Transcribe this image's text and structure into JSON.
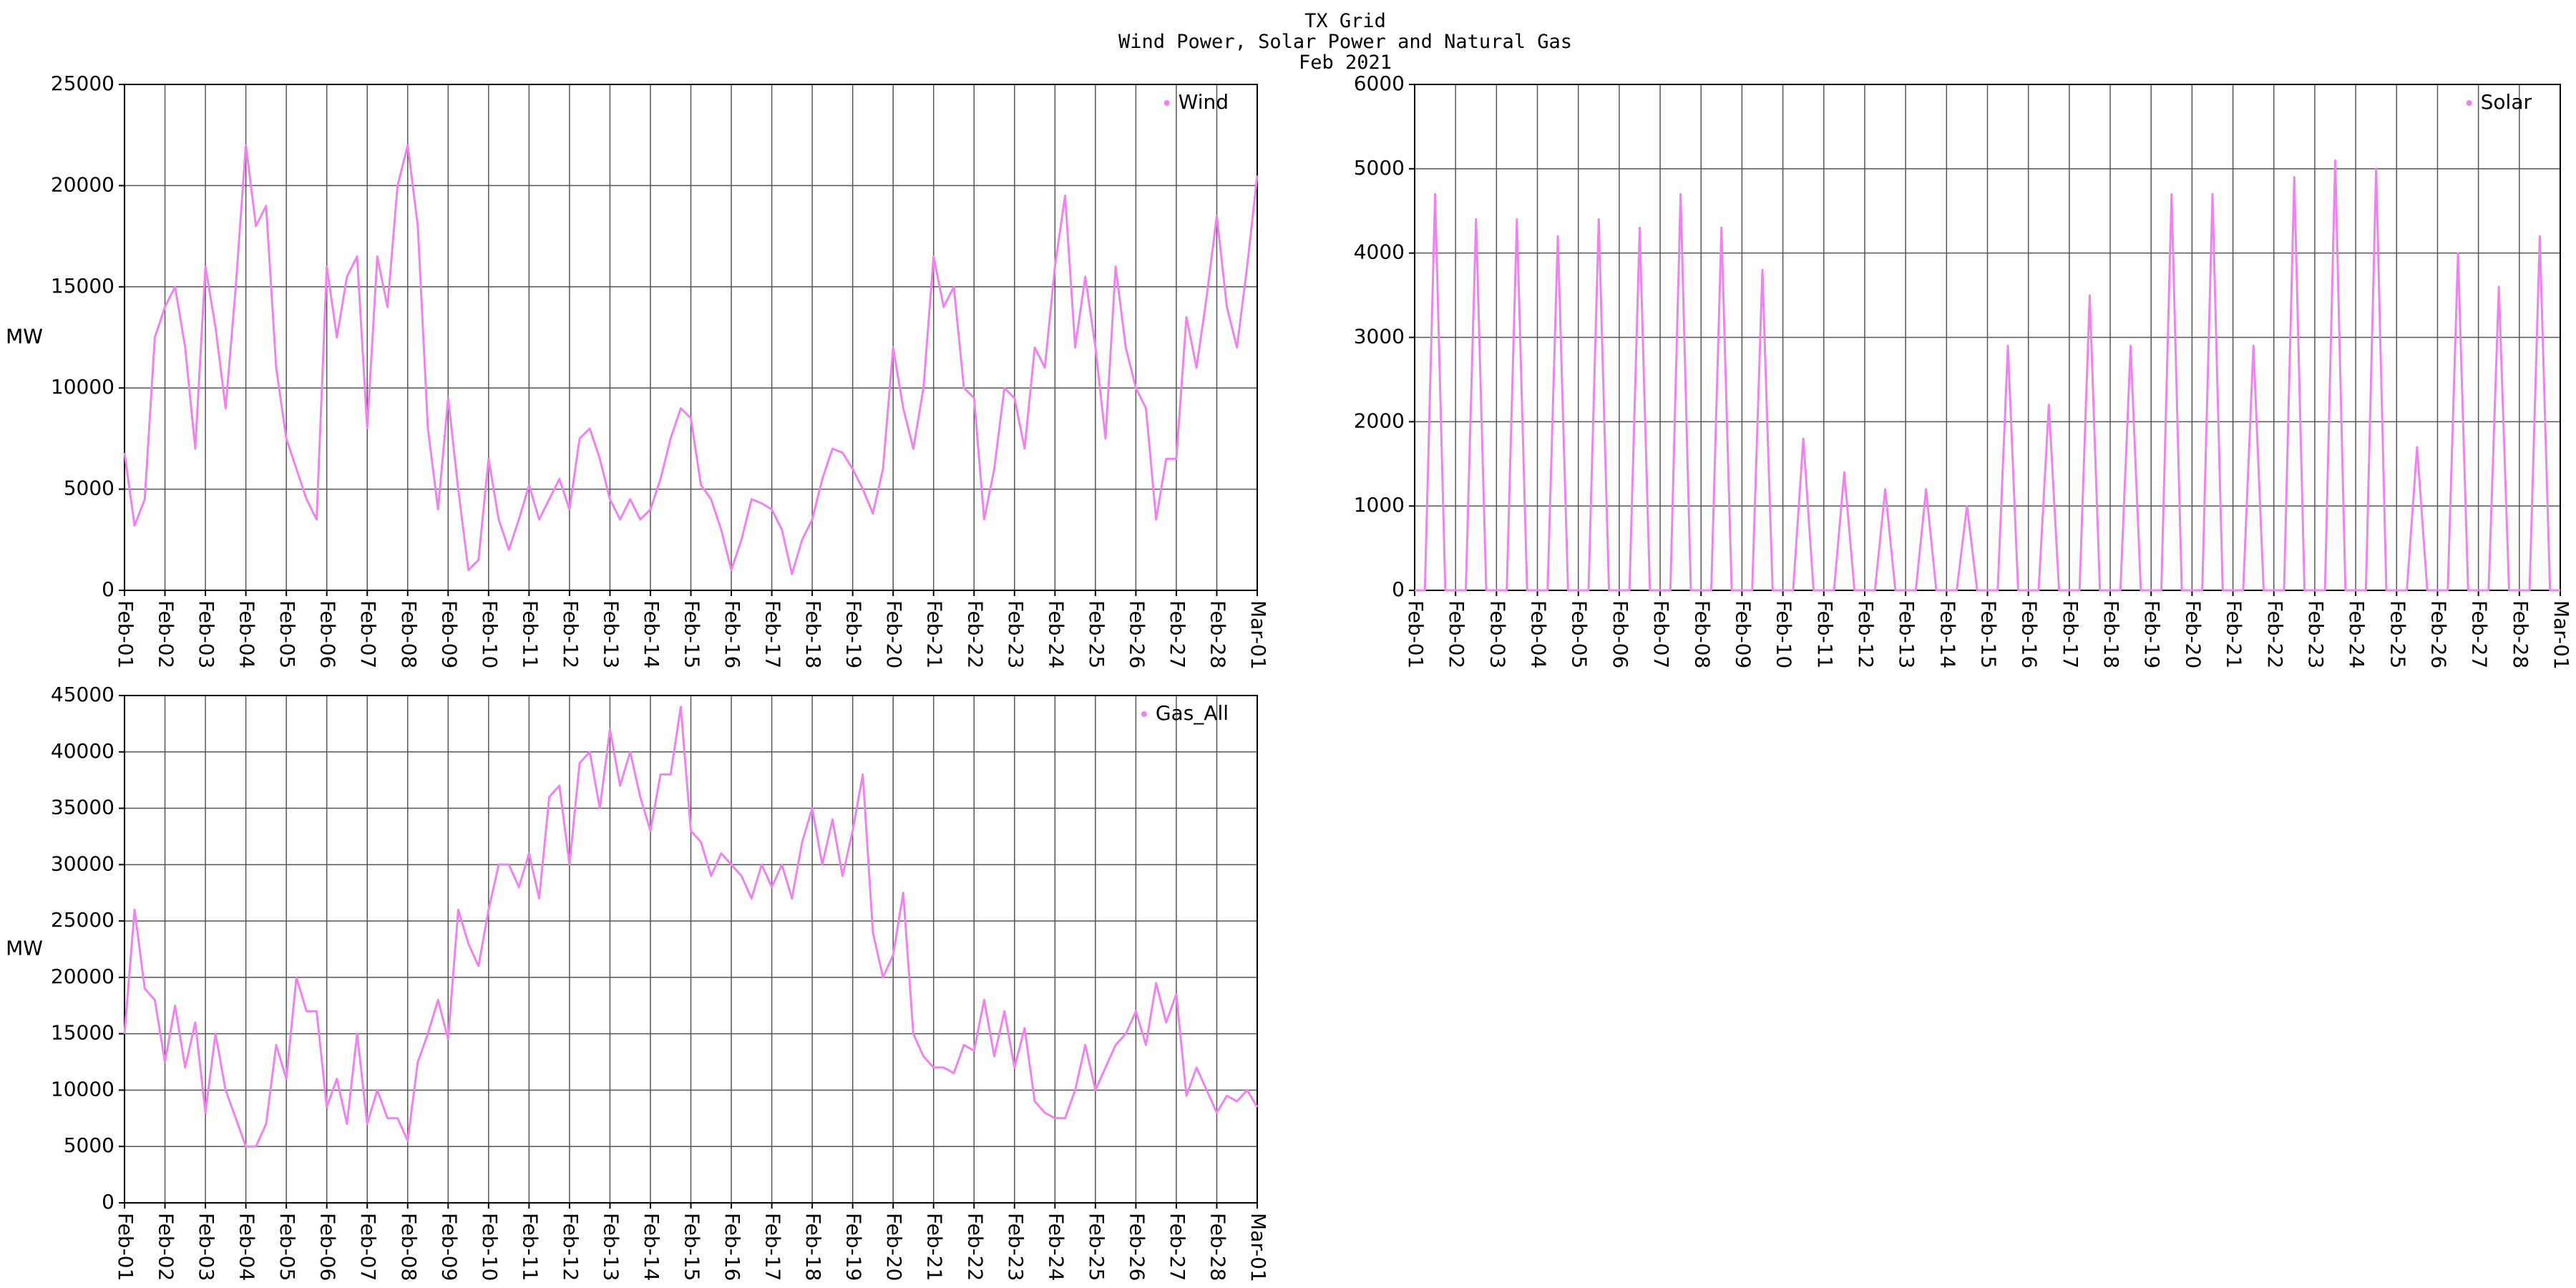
{
  "title": [
    "TX Grid",
    "Wind Power, Solar Power and Natural Gas",
    "Feb 2021"
  ],
  "chart_data": [
    {
      "type": "line",
      "ylabel": "MW",
      "grid": true,
      "legend": "upper right",
      "xlim": [
        1,
        29
      ],
      "ylim": [
        0,
        25000
      ],
      "yticks": [
        0,
        5000,
        10000,
        15000,
        20000,
        25000
      ],
      "xticks": [
        {
          "value": 1,
          "label": "Feb-01"
        },
        {
          "value": 2,
          "label": "Feb-02"
        },
        {
          "value": 3,
          "label": "Feb-03"
        },
        {
          "value": 4,
          "label": "Feb-04"
        },
        {
          "value": 5,
          "label": "Feb-05"
        },
        {
          "value": 6,
          "label": "Feb-06"
        },
        {
          "value": 7,
          "label": "Feb-07"
        },
        {
          "value": 8,
          "label": "Feb-08"
        },
        {
          "value": 9,
          "label": "Feb-09"
        },
        {
          "value": 10,
          "label": "Feb-10"
        },
        {
          "value": 11,
          "label": "Feb-11"
        },
        {
          "value": 12,
          "label": "Feb-12"
        },
        {
          "value": 13,
          "label": "Feb-13"
        },
        {
          "value": 14,
          "label": "Feb-14"
        },
        {
          "value": 15,
          "label": "Feb-15"
        },
        {
          "value": 16,
          "label": "Feb-16"
        },
        {
          "value": 17,
          "label": "Feb-17"
        },
        {
          "value": 18,
          "label": "Feb-18"
        },
        {
          "value": 19,
          "label": "Feb-19"
        },
        {
          "value": 20,
          "label": "Feb-20"
        },
        {
          "value": 21,
          "label": "Feb-21"
        },
        {
          "value": 22,
          "label": "Feb-22"
        },
        {
          "value": 23,
          "label": "Feb-23"
        },
        {
          "value": 24,
          "label": "Feb-24"
        },
        {
          "value": 25,
          "label": "Feb-25"
        },
        {
          "value": 26,
          "label": "Feb-26"
        },
        {
          "value": 27,
          "label": "Feb-27"
        },
        {
          "value": 28,
          "label": "Feb-28"
        },
        {
          "value": 29,
          "label": "Mar-01"
        }
      ],
      "x": [
        1,
        1.25,
        1.5,
        1.75,
        2,
        2.25,
        2.5,
        2.75,
        3,
        3.25,
        3.5,
        3.75,
        4,
        4.25,
        4.5,
        4.75,
        5,
        5.25,
        5.5,
        5.75,
        6,
        6.25,
        6.5,
        6.75,
        7,
        7.25,
        7.5,
        7.75,
        8,
        8.25,
        8.5,
        8.75,
        9,
        9.25,
        9.5,
        9.75,
        10,
        10.25,
        10.5,
        10.75,
        11,
        11.25,
        11.5,
        11.75,
        12,
        12.25,
        12.5,
        12.75,
        13,
        13.25,
        13.5,
        13.75,
        14,
        14.25,
        14.5,
        14.75,
        15,
        15.25,
        15.5,
        15.75,
        16,
        16.25,
        16.5,
        16.75,
        17,
        17.25,
        17.5,
        17.75,
        18,
        18.25,
        18.5,
        18.75,
        19,
        19.25,
        19.5,
        19.75,
        20,
        20.25,
        20.5,
        20.75,
        21,
        21.25,
        21.5,
        21.75,
        22,
        22.25,
        22.5,
        22.75,
        23,
        23.25,
        23.5,
        23.75,
        24,
        24.25,
        24.5,
        24.75,
        25,
        25.25,
        25.5,
        25.75,
        26,
        26.25,
        26.5,
        26.75,
        27,
        27.25,
        27.5,
        27.75,
        28,
        28.25,
        28.5,
        28.75,
        29
      ],
      "series": [
        {
          "name": "Wind",
          "color": "#ee82ee",
          "values": [
            6800,
            3200,
            4500,
            12500,
            14000,
            15000,
            12000,
            7000,
            16000,
            13000,
            9000,
            15000,
            22000,
            18000,
            19000,
            11000,
            7500,
            6000,
            4500,
            3500,
            16000,
            12500,
            15500,
            16500,
            8000,
            16500,
            14000,
            20000,
            22000,
            18000,
            8000,
            4000,
            9500,
            5000,
            1000,
            1500,
            6500,
            3500,
            2000,
            3500,
            5200,
            3500,
            4500,
            5500,
            4000,
            7500,
            8000,
            6500,
            4500,
            3500,
            4500,
            3500,
            4000,
            5500,
            7500,
            9000,
            8500,
            5200,
            4500,
            3000,
            1000,
            2500,
            4500,
            4300,
            4000,
            3000,
            800,
            2500,
            3500,
            5500,
            7000,
            6800,
            6000,
            5000,
            3800,
            6000,
            12000,
            9000,
            7000,
            10000,
            16500,
            14000,
            15000,
            10000,
            9500,
            3500,
            6000,
            10000,
            9500,
            7000,
            12000,
            11000,
            16000,
            19500,
            12000,
            15500,
            12000,
            7500,
            16000,
            12000,
            10000,
            9000,
            3500,
            6500,
            6500,
            13500,
            11000,
            14500,
            18500,
            14000,
            12000,
            16000,
            20500
          ]
        }
      ]
    },
    {
      "type": "line",
      "ylabel": "MW",
      "grid": true,
      "legend": "upper right",
      "xlim": [
        1,
        29
      ],
      "ylim": [
        0,
        6000
      ],
      "yticks": [
        0,
        1000,
        2000,
        3000,
        4000,
        5000,
        6000
      ],
      "xticks": [
        {
          "value": 1,
          "label": "Feb-01"
        },
        {
          "value": 2,
          "label": "Feb-02"
        },
        {
          "value": 3,
          "label": "Feb-03"
        },
        {
          "value": 4,
          "label": "Feb-04"
        },
        {
          "value": 5,
          "label": "Feb-05"
        },
        {
          "value": 6,
          "label": "Feb-06"
        },
        {
          "value": 7,
          "label": "Feb-07"
        },
        {
          "value": 8,
          "label": "Feb-08"
        },
        {
          "value": 9,
          "label": "Feb-09"
        },
        {
          "value": 10,
          "label": "Feb-10"
        },
        {
          "value": 11,
          "label": "Feb-11"
        },
        {
          "value": 12,
          "label": "Feb-12"
        },
        {
          "value": 13,
          "label": "Feb-13"
        },
        {
          "value": 14,
          "label": "Feb-14"
        },
        {
          "value": 15,
          "label": "Feb-15"
        },
        {
          "value": 16,
          "label": "Feb-16"
        },
        {
          "value": 17,
          "label": "Feb-17"
        },
        {
          "value": 18,
          "label": "Feb-18"
        },
        {
          "value": 19,
          "label": "Feb-19"
        },
        {
          "value": 20,
          "label": "Feb-20"
        },
        {
          "value": 21,
          "label": "Feb-21"
        },
        {
          "value": 22,
          "label": "Feb-22"
        },
        {
          "value": 23,
          "label": "Feb-23"
        },
        {
          "value": 24,
          "label": "Feb-24"
        },
        {
          "value": 25,
          "label": "Feb-25"
        },
        {
          "value": 26,
          "label": "Feb-26"
        },
        {
          "value": 27,
          "label": "Feb-27"
        },
        {
          "value": 28,
          "label": "Feb-28"
        },
        {
          "value": 29,
          "label": "Mar-01"
        }
      ],
      "x": [
        1,
        1.25,
        1.5,
        1.75,
        2,
        2.25,
        2.5,
        2.75,
        3,
        3.25,
        3.5,
        3.75,
        4,
        4.25,
        4.5,
        4.75,
        5,
        5.25,
        5.5,
        5.75,
        6,
        6.25,
        6.5,
        6.75,
        7,
        7.25,
        7.5,
        7.75,
        8,
        8.25,
        8.5,
        8.75,
        9,
        9.25,
        9.5,
        9.75,
        10,
        10.25,
        10.5,
        10.75,
        11,
        11.25,
        11.5,
        11.75,
        12,
        12.25,
        12.5,
        12.75,
        13,
        13.25,
        13.5,
        13.75,
        14,
        14.25,
        14.5,
        14.75,
        15,
        15.25,
        15.5,
        15.75,
        16,
        16.25,
        16.5,
        16.75,
        17,
        17.25,
        17.5,
        17.75,
        18,
        18.25,
        18.5,
        18.75,
        19,
        19.25,
        19.5,
        19.75,
        20,
        20.25,
        20.5,
        20.75,
        21,
        21.25,
        21.5,
        21.75,
        22,
        22.25,
        22.5,
        22.75,
        23,
        23.25,
        23.5,
        23.75,
        24,
        24.25,
        24.5,
        24.75,
        25,
        25.25,
        25.5,
        25.75,
        26,
        26.25,
        26.5,
        26.75,
        27,
        27.25,
        27.5,
        27.75,
        28,
        28.25,
        28.5,
        28.75,
        29
      ],
      "series": [
        {
          "name": "Solar",
          "color": "#ee82ee",
          "values": [
            0,
            0,
            4700,
            0,
            0,
            0,
            4400,
            0,
            0,
            0,
            4400,
            0,
            0,
            0,
            4200,
            0,
            0,
            0,
            4400,
            0,
            0,
            0,
            4300,
            0,
            0,
            0,
            4700,
            0,
            0,
            0,
            4300,
            0,
            0,
            0,
            3800,
            0,
            0,
            0,
            1800,
            0,
            0,
            0,
            1400,
            0,
            0,
            0,
            1200,
            0,
            0,
            0,
            1200,
            0,
            0,
            0,
            1000,
            0,
            0,
            0,
            2900,
            0,
            0,
            0,
            2200,
            0,
            0,
            0,
            3500,
            0,
            0,
            0,
            2900,
            0,
            0,
            0,
            4700,
            0,
            0,
            0,
            4700,
            0,
            0,
            0,
            2900,
            0,
            0,
            0,
            4900,
            0,
            0,
            0,
            5100,
            0,
            0,
            0,
            5000,
            0,
            0,
            0,
            1700,
            0,
            0,
            0,
            4000,
            0,
            0,
            0,
            3600,
            0,
            0,
            0,
            4200,
            0,
            0
          ]
        }
      ]
    },
    {
      "type": "line",
      "ylabel": "MW",
      "grid": true,
      "legend": "upper right",
      "xlim": [
        1,
        29
      ],
      "ylim": [
        0,
        45000
      ],
      "yticks": [
        0,
        5000,
        10000,
        15000,
        20000,
        25000,
        30000,
        35000,
        40000,
        45000
      ],
      "xticks": [
        {
          "value": 1,
          "label": "Feb-01"
        },
        {
          "value": 2,
          "label": "Feb-02"
        },
        {
          "value": 3,
          "label": "Feb-03"
        },
        {
          "value": 4,
          "label": "Feb-04"
        },
        {
          "value": 5,
          "label": "Feb-05"
        },
        {
          "value": 6,
          "label": "Feb-06"
        },
        {
          "value": 7,
          "label": "Feb-07"
        },
        {
          "value": 8,
          "label": "Feb-08"
        },
        {
          "value": 9,
          "label": "Feb-09"
        },
        {
          "value": 10,
          "label": "Feb-10"
        },
        {
          "value": 11,
          "label": "Feb-11"
        },
        {
          "value": 12,
          "label": "Feb-12"
        },
        {
          "value": 13,
          "label": "Feb-13"
        },
        {
          "value": 14,
          "label": "Feb-14"
        },
        {
          "value": 15,
          "label": "Feb-15"
        },
        {
          "value": 16,
          "label": "Feb-16"
        },
        {
          "value": 17,
          "label": "Feb-17"
        },
        {
          "value": 18,
          "label": "Feb-18"
        },
        {
          "value": 19,
          "label": "Feb-19"
        },
        {
          "value": 20,
          "label": "Feb-20"
        },
        {
          "value": 21,
          "label": "Feb-21"
        },
        {
          "value": 22,
          "label": "Feb-22"
        },
        {
          "value": 23,
          "label": "Feb-23"
        },
        {
          "value": 24,
          "label": "Feb-24"
        },
        {
          "value": 25,
          "label": "Feb-25"
        },
        {
          "value": 26,
          "label": "Feb-26"
        },
        {
          "value": 27,
          "label": "Feb-27"
        },
        {
          "value": 28,
          "label": "Feb-28"
        },
        {
          "value": 29,
          "label": "Mar-01"
        }
      ],
      "x": [
        1,
        1.25,
        1.5,
        1.75,
        2,
        2.25,
        2.5,
        2.75,
        3,
        3.25,
        3.5,
        3.75,
        4,
        4.25,
        4.5,
        4.75,
        5,
        5.25,
        5.5,
        5.75,
        6,
        6.25,
        6.5,
        6.75,
        7,
        7.25,
        7.5,
        7.75,
        8,
        8.25,
        8.5,
        8.75,
        9,
        9.25,
        9.5,
        9.75,
        10,
        10.25,
        10.5,
        10.75,
        11,
        11.25,
        11.5,
        11.75,
        12,
        12.25,
        12.5,
        12.75,
        13,
        13.25,
        13.5,
        13.75,
        14,
        14.25,
        14.5,
        14.75,
        15,
        15.25,
        15.5,
        15.75,
        16,
        16.25,
        16.5,
        16.75,
        17,
        17.25,
        17.5,
        17.75,
        18,
        18.25,
        18.5,
        18.75,
        19,
        19.25,
        19.5,
        19.75,
        20,
        20.25,
        20.5,
        20.75,
        21,
        21.25,
        21.5,
        21.75,
        22,
        22.25,
        22.5,
        22.75,
        23,
        23.25,
        23.5,
        23.75,
        24,
        24.25,
        24.5,
        24.75,
        25,
        25.25,
        25.5,
        25.75,
        26,
        26.25,
        26.5,
        26.75,
        27,
        27.25,
        27.5,
        27.75,
        28,
        28.25,
        28.5,
        28.75,
        29
      ],
      "series": [
        {
          "name": "Gas_All",
          "color": "#ee82ee",
          "values": [
            15000,
            26000,
            19000,
            18000,
            12500,
            17500,
            12000,
            16000,
            8000,
            15000,
            10000,
            7500,
            5000,
            5000,
            7000,
            14000,
            11000,
            20000,
            17000,
            17000,
            8500,
            11000,
            7000,
            15000,
            7000,
            10000,
            7500,
            7500,
            5500,
            12500,
            15000,
            18000,
            14500,
            26000,
            23000,
            21000,
            26000,
            30000,
            30000,
            28000,
            31000,
            27000,
            36000,
            37000,
            30000,
            39000,
            40000,
            35000,
            42000,
            37000,
            40000,
            36000,
            33000,
            38000,
            38000,
            44000,
            33000,
            32000,
            29000,
            31000,
            30000,
            29000,
            27000,
            30000,
            28000,
            30000,
            27000,
            32000,
            35000,
            30000,
            34000,
            29000,
            33000,
            38000,
            24000,
            20000,
            22000,
            27500,
            15000,
            13000,
            12000,
            12000,
            11500,
            14000,
            13500,
            18000,
            13000,
            17000,
            12000,
            15500,
            9000,
            8000,
            7500,
            7500,
            10000,
            14000,
            10000,
            12000,
            14000,
            15000,
            17000,
            14000,
            19500,
            16000,
            18500,
            9500,
            12000,
            10000,
            8000,
            9500,
            9000,
            10000,
            8500
          ]
        }
      ]
    }
  ]
}
